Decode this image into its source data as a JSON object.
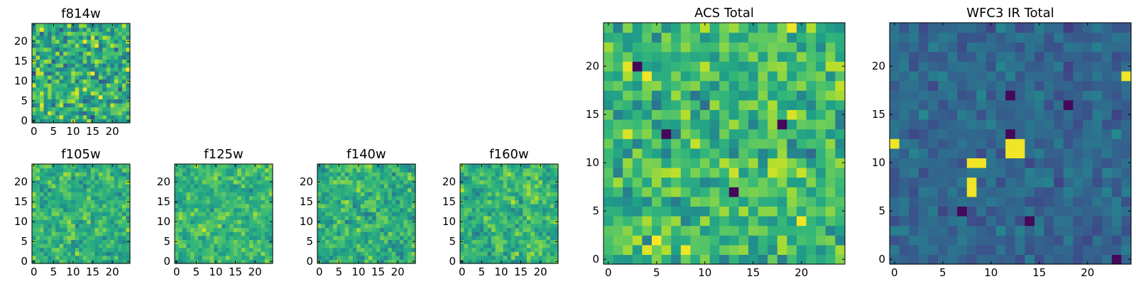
{
  "colormap": "viridis",
  "colors": {
    "axis": "#000000",
    "background": "#ffffff"
  },
  "chart_data": [
    {
      "type": "heatmap",
      "title": "f814w",
      "shape": [
        25,
        25
      ],
      "xlim": [
        0,
        24
      ],
      "ylim": [
        0,
        24
      ],
      "xticks": [
        0,
        5,
        10,
        15,
        20
      ],
      "yticks": [
        0,
        5,
        10,
        15,
        20
      ],
      "values_description": "pixel noise image",
      "value_range": [
        0,
        1
      ],
      "seed": 11,
      "mean": 0.62,
      "spread": 0.22,
      "smooth": 0
    },
    {
      "type": "heatmap",
      "title": "f105w",
      "shape": [
        25,
        25
      ],
      "xlim": [
        0,
        24
      ],
      "ylim": [
        0,
        24
      ],
      "xticks": [
        0,
        5,
        10,
        15,
        20
      ],
      "yticks": [
        0,
        5,
        10,
        15,
        20
      ],
      "value_range": [
        0,
        1
      ],
      "seed": 23,
      "mean": 0.64,
      "spread": 0.2,
      "smooth": 1
    },
    {
      "type": "heatmap",
      "title": "f125w",
      "shape": [
        25,
        25
      ],
      "xlim": [
        0,
        24
      ],
      "ylim": [
        0,
        24
      ],
      "xticks": [
        0,
        5,
        10,
        15,
        20
      ],
      "yticks": [
        0,
        5,
        10,
        15,
        20
      ],
      "value_range": [
        0,
        1
      ],
      "seed": 37,
      "mean": 0.66,
      "spread": 0.18,
      "smooth": 1
    },
    {
      "type": "heatmap",
      "title": "f140w",
      "shape": [
        25,
        25
      ],
      "xlim": [
        0,
        24
      ],
      "ylim": [
        0,
        24
      ],
      "xticks": [
        0,
        5,
        10,
        15,
        20
      ],
      "yticks": [
        0,
        5,
        10,
        15,
        20
      ],
      "value_range": [
        0,
        1
      ],
      "seed": 41,
      "mean": 0.63,
      "spread": 0.2,
      "smooth": 1
    },
    {
      "type": "heatmap",
      "title": "f160w",
      "shape": [
        25,
        25
      ],
      "xlim": [
        0,
        24
      ],
      "ylim": [
        0,
        24
      ],
      "xticks": [
        0,
        5,
        10,
        15,
        20
      ],
      "yticks": [
        0,
        5,
        10,
        15,
        20
      ],
      "value_range": [
        0,
        1
      ],
      "seed": 53,
      "mean": 0.65,
      "spread": 0.2,
      "smooth": 1
    },
    {
      "type": "heatmap",
      "title": "ACS Total",
      "shape": [
        25,
        25
      ],
      "xlim": [
        0,
        24
      ],
      "ylim": [
        0,
        24
      ],
      "xticks": [
        0,
        5,
        10,
        15,
        20
      ],
      "yticks": [
        0,
        5,
        10,
        15,
        20
      ],
      "value_range": [
        0,
        1
      ],
      "seed": 67,
      "mean": 0.68,
      "spread": 0.17,
      "smooth": 0,
      "bright_cells": [
        [
          19,
          24
        ],
        [
          4,
          19
        ],
        [
          20,
          4
        ],
        [
          8,
          1
        ]
      ],
      "dark_cells": [
        [
          3,
          20
        ],
        [
          18,
          14
        ],
        [
          6,
          13
        ],
        [
          13,
          7
        ]
      ]
    },
    {
      "type": "heatmap",
      "title": "WFC3 IR Total",
      "shape": [
        25,
        25
      ],
      "xlim": [
        0,
        24
      ],
      "ylim": [
        0,
        24
      ],
      "xticks": [
        0,
        5,
        10,
        15,
        20
      ],
      "yticks": [
        0,
        5,
        10,
        15,
        20
      ],
      "value_range": [
        0,
        1
      ],
      "seed": 79,
      "mean": 0.33,
      "spread": 0.08,
      "smooth": 0,
      "bright_cells": [
        [
          12,
          11
        ],
        [
          13,
          11
        ],
        [
          13,
          12
        ],
        [
          12,
          12
        ],
        [
          8,
          10
        ],
        [
          9,
          10
        ],
        [
          8,
          7
        ],
        [
          8,
          8
        ],
        [
          0,
          12
        ],
        [
          24,
          19
        ]
      ],
      "dark_cells": [
        [
          12,
          17
        ],
        [
          12,
          13
        ],
        [
          7,
          5
        ],
        [
          14,
          4
        ],
        [
          23,
          0
        ],
        [
          18,
          16
        ]
      ]
    }
  ]
}
